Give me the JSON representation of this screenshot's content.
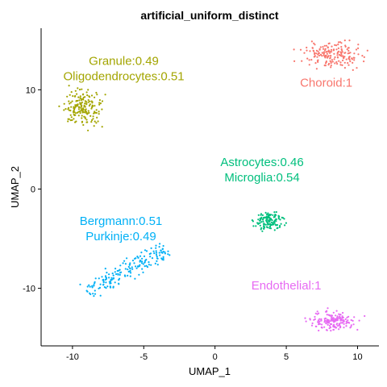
{
  "chart_data": {
    "type": "scatter",
    "title": "artificial_uniform_distinct",
    "xlabel": "UMAP_1",
    "ylabel": "UMAP_2",
    "xlim": [
      -12.2,
      11.5
    ],
    "ylim": [
      -15.8,
      16.2
    ],
    "x_ticks": [
      -10,
      -5,
      0,
      5,
      10
    ],
    "x_tick_labels": [
      "-10",
      "-5",
      "0",
      "5",
      "10"
    ],
    "y_ticks": [
      -10,
      0,
      10
    ],
    "y_tick_labels": [
      "-10",
      "0",
      "10"
    ],
    "grid": false,
    "legend": "none",
    "clusters": [
      {
        "color": "#F8766D",
        "label_lines": [
          "Choroid:1"
        ],
        "label_pos": [
          7.8,
          10.3
        ],
        "shape": "blob",
        "center": [
          8.3,
          13.5
        ],
        "spread": [
          2.1,
          1.2
        ],
        "n": 180
      },
      {
        "color": "#A3A500",
        "label_lines": [
          "Granule:0.49",
          "Oligodendrocytes:0.51"
        ],
        "label_pos": [
          -6.4,
          12.5
        ],
        "shape": "blob",
        "center": [
          -9.3,
          8.1
        ],
        "spread": [
          1.3,
          1.8
        ],
        "n": 180
      },
      {
        "color": "#00BF7D",
        "label_lines": [
          "Astrocytes:0.46",
          "Microglia:0.54"
        ],
        "label_pos": [
          3.3,
          2.3
        ],
        "shape": "blob",
        "center": [
          3.8,
          -3.2
        ],
        "spread": [
          0.95,
          0.9
        ],
        "n": 130
      },
      {
        "color": "#00B0F6",
        "label_lines": [
          "Bergmann:0.51",
          "Purkinje:0.49"
        ],
        "label_pos": [
          -6.6,
          -3.6
        ],
        "shape": "band",
        "start": [
          -9.0,
          -10.3
        ],
        "end": [
          -3.4,
          -6.0
        ],
        "width": 0.9,
        "n": 180
      },
      {
        "color": "#E76BF3",
        "label_lines": [
          "Endothelial:1"
        ],
        "label_pos": [
          5.0,
          -10.1
        ],
        "shape": "blob",
        "center": [
          8.3,
          -13.3
        ],
        "spread": [
          1.5,
          1.0
        ],
        "n": 170
      }
    ]
  }
}
